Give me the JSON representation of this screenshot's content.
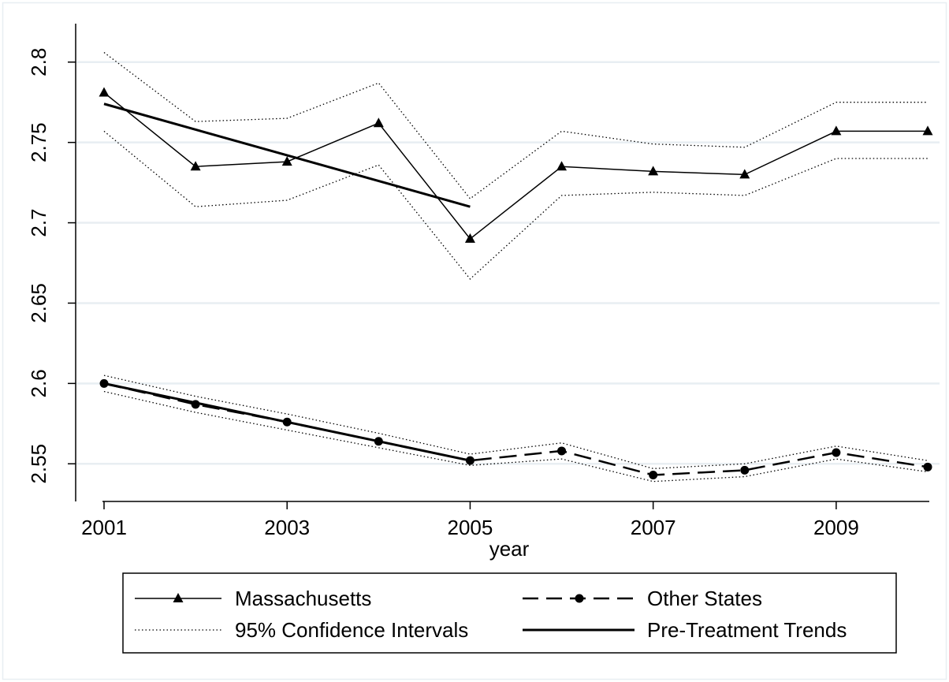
{
  "chart_data": {
    "type": "line",
    "title": "",
    "xlabel": "year",
    "ylabel": "",
    "xlim": [
      2001,
      2010
    ],
    "ylim": [
      2.53,
      2.82
    ],
    "x": [
      2001,
      2002,
      2003,
      2004,
      2005,
      2006,
      2007,
      2008,
      2009,
      2010
    ],
    "x_ticks": [
      2001,
      2003,
      2005,
      2007,
      2009
    ],
    "x_tick_labels": [
      "2001",
      "2003",
      "2005",
      "2007",
      "2009"
    ],
    "y_ticks": [
      2.55,
      2.6,
      2.65,
      2.7,
      2.75,
      2.8
    ],
    "y_tick_labels": [
      "2.55",
      "2.6",
      "2.65",
      "2.7",
      "2.75",
      "2.8"
    ],
    "grid": true,
    "legend_position": "bottom",
    "series": [
      {
        "name": "Massachusetts",
        "style": "solid-thin-triangle-markers",
        "values": [
          2.781,
          2.735,
          2.738,
          2.762,
          2.69,
          2.735,
          2.732,
          2.73,
          2.757,
          2.757
        ]
      },
      {
        "name": "Other States",
        "style": "dashed-circle-markers",
        "values": [
          2.6,
          2.587,
          2.576,
          2.564,
          2.552,
          2.558,
          2.543,
          2.546,
          2.557,
          2.548
        ]
      },
      {
        "name": "95% Confidence Intervals",
        "style": "dotted",
        "bands": [
          {
            "lower": [
              2.757,
              2.71,
              2.714,
              2.736,
              2.665,
              2.717,
              2.719,
              2.717,
              2.74,
              2.74
            ],
            "upper": [
              2.806,
              2.763,
              2.765,
              2.787,
              2.715,
              2.757,
              2.749,
              2.747,
              2.775,
              2.775
            ]
          },
          {
            "lower": [
              2.595,
              2.582,
              2.571,
              2.56,
              2.549,
              2.553,
              2.539,
              2.542,
              2.553,
              2.545
            ],
            "upper": [
              2.605,
              2.592,
              2.581,
              2.569,
              2.556,
              2.563,
              2.547,
              2.55,
              2.561,
              2.552
            ]
          }
        ]
      },
      {
        "name": "Pre-Treatment Trends",
        "style": "solid-thick",
        "segments": [
          {
            "x": [
              2001,
              2005
            ],
            "values": [
              2.774,
              2.71
            ]
          },
          {
            "x": [
              2001,
              2005
            ],
            "values": [
              2.6,
              2.552
            ]
          }
        ]
      }
    ]
  },
  "colors": {
    "background": "#ffffff",
    "border": "#e8eef2",
    "grid": "#e8eef2",
    "ink": "#000000"
  }
}
